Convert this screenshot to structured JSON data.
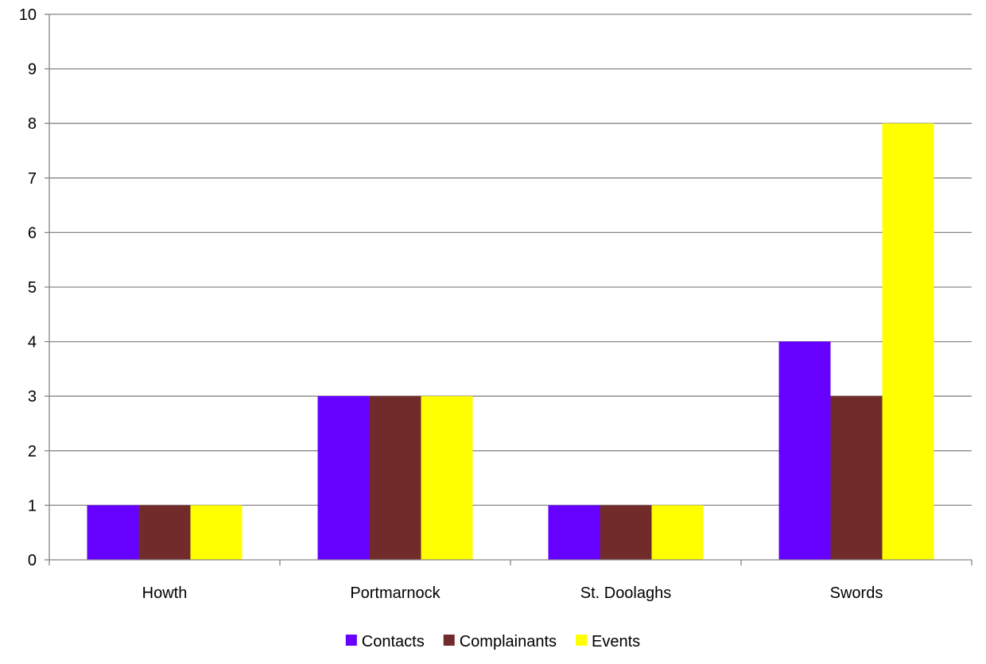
{
  "chart_data": {
    "type": "bar",
    "categories": [
      "Howth",
      "Portmarnock",
      "St. Doolaghs",
      "Swords"
    ],
    "series": [
      {
        "name": "Contacts",
        "values": [
          1,
          3,
          1,
          4
        ],
        "color": "#6600ff"
      },
      {
        "name": "Complainants",
        "values": [
          1,
          3,
          1,
          3
        ],
        "color": "#722b2b"
      },
      {
        "name": "Events",
        "values": [
          1,
          3,
          1,
          8
        ],
        "color": "#ffff00"
      }
    ],
    "yticks": [
      "0",
      "1",
      "2",
      "3",
      "4",
      "5",
      "6",
      "7",
      "8",
      "9",
      "10"
    ],
    "ylim": [
      0,
      10
    ],
    "grid": true,
    "legend_position": "bottom",
    "title": "",
    "xlabel": "",
    "ylabel": ""
  }
}
